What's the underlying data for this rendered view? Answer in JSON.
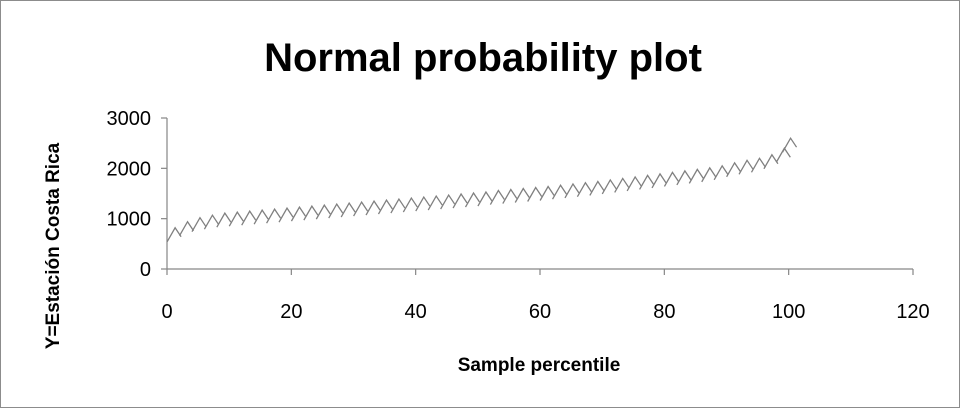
{
  "chart_data": {
    "type": "scatter",
    "title": "Normal probability plot",
    "xlabel": "Sample percentile",
    "ylabel": "Y=Estación Costa Rica",
    "xlim": [
      0,
      120
    ],
    "ylim": [
      0,
      3000
    ],
    "x_ticks": [
      "0",
      "20",
      "40",
      "60",
      "80",
      "100",
      "120"
    ],
    "y_ticks": [
      "0",
      "1000",
      "2000",
      "3000"
    ],
    "grid": false,
    "legend": "none",
    "marker": "dash",
    "colors": {
      "marker": "#808080",
      "axis": "#868686",
      "text": "#000000"
    },
    "series": [
      {
        "x": [
          0.5,
          2.5,
          4.5,
          6.5,
          8.5,
          10.5,
          12.5,
          14.5,
          16.5,
          18.5,
          20.5,
          22.5,
          24.5,
          26.5,
          28.5,
          30.5,
          32.5,
          34.5,
          36.5,
          38.5,
          40.5,
          42.5,
          44.5,
          46.5,
          48.5,
          50.5,
          52.5,
          54.5,
          56.5,
          58.5,
          60.5,
          62.5,
          64.5,
          66.5,
          68.5,
          70.5,
          72.5,
          74.5,
          76.5,
          78.5,
          80.5,
          82.5,
          84.5,
          86.5,
          88.5,
          90.5,
          92.5,
          94.5,
          96.5,
          98.5,
          99.5
        ],
        "y": [
          700,
          820,
          900,
          950,
          990,
          1010,
          1030,
          1050,
          1070,
          1090,
          1110,
          1130,
          1150,
          1170,
          1190,
          1210,
          1230,
          1250,
          1270,
          1290,
          1310,
          1330,
          1350,
          1370,
          1390,
          1410,
          1440,
          1460,
          1480,
          1500,
          1520,
          1545,
          1570,
          1595,
          1620,
          1650,
          1680,
          1710,
          1740,
          1770,
          1800,
          1830,
          1860,
          1890,
          1930,
          1990,
          2040,
          2080,
          2150,
          2280,
          2480
        ]
      }
    ]
  }
}
